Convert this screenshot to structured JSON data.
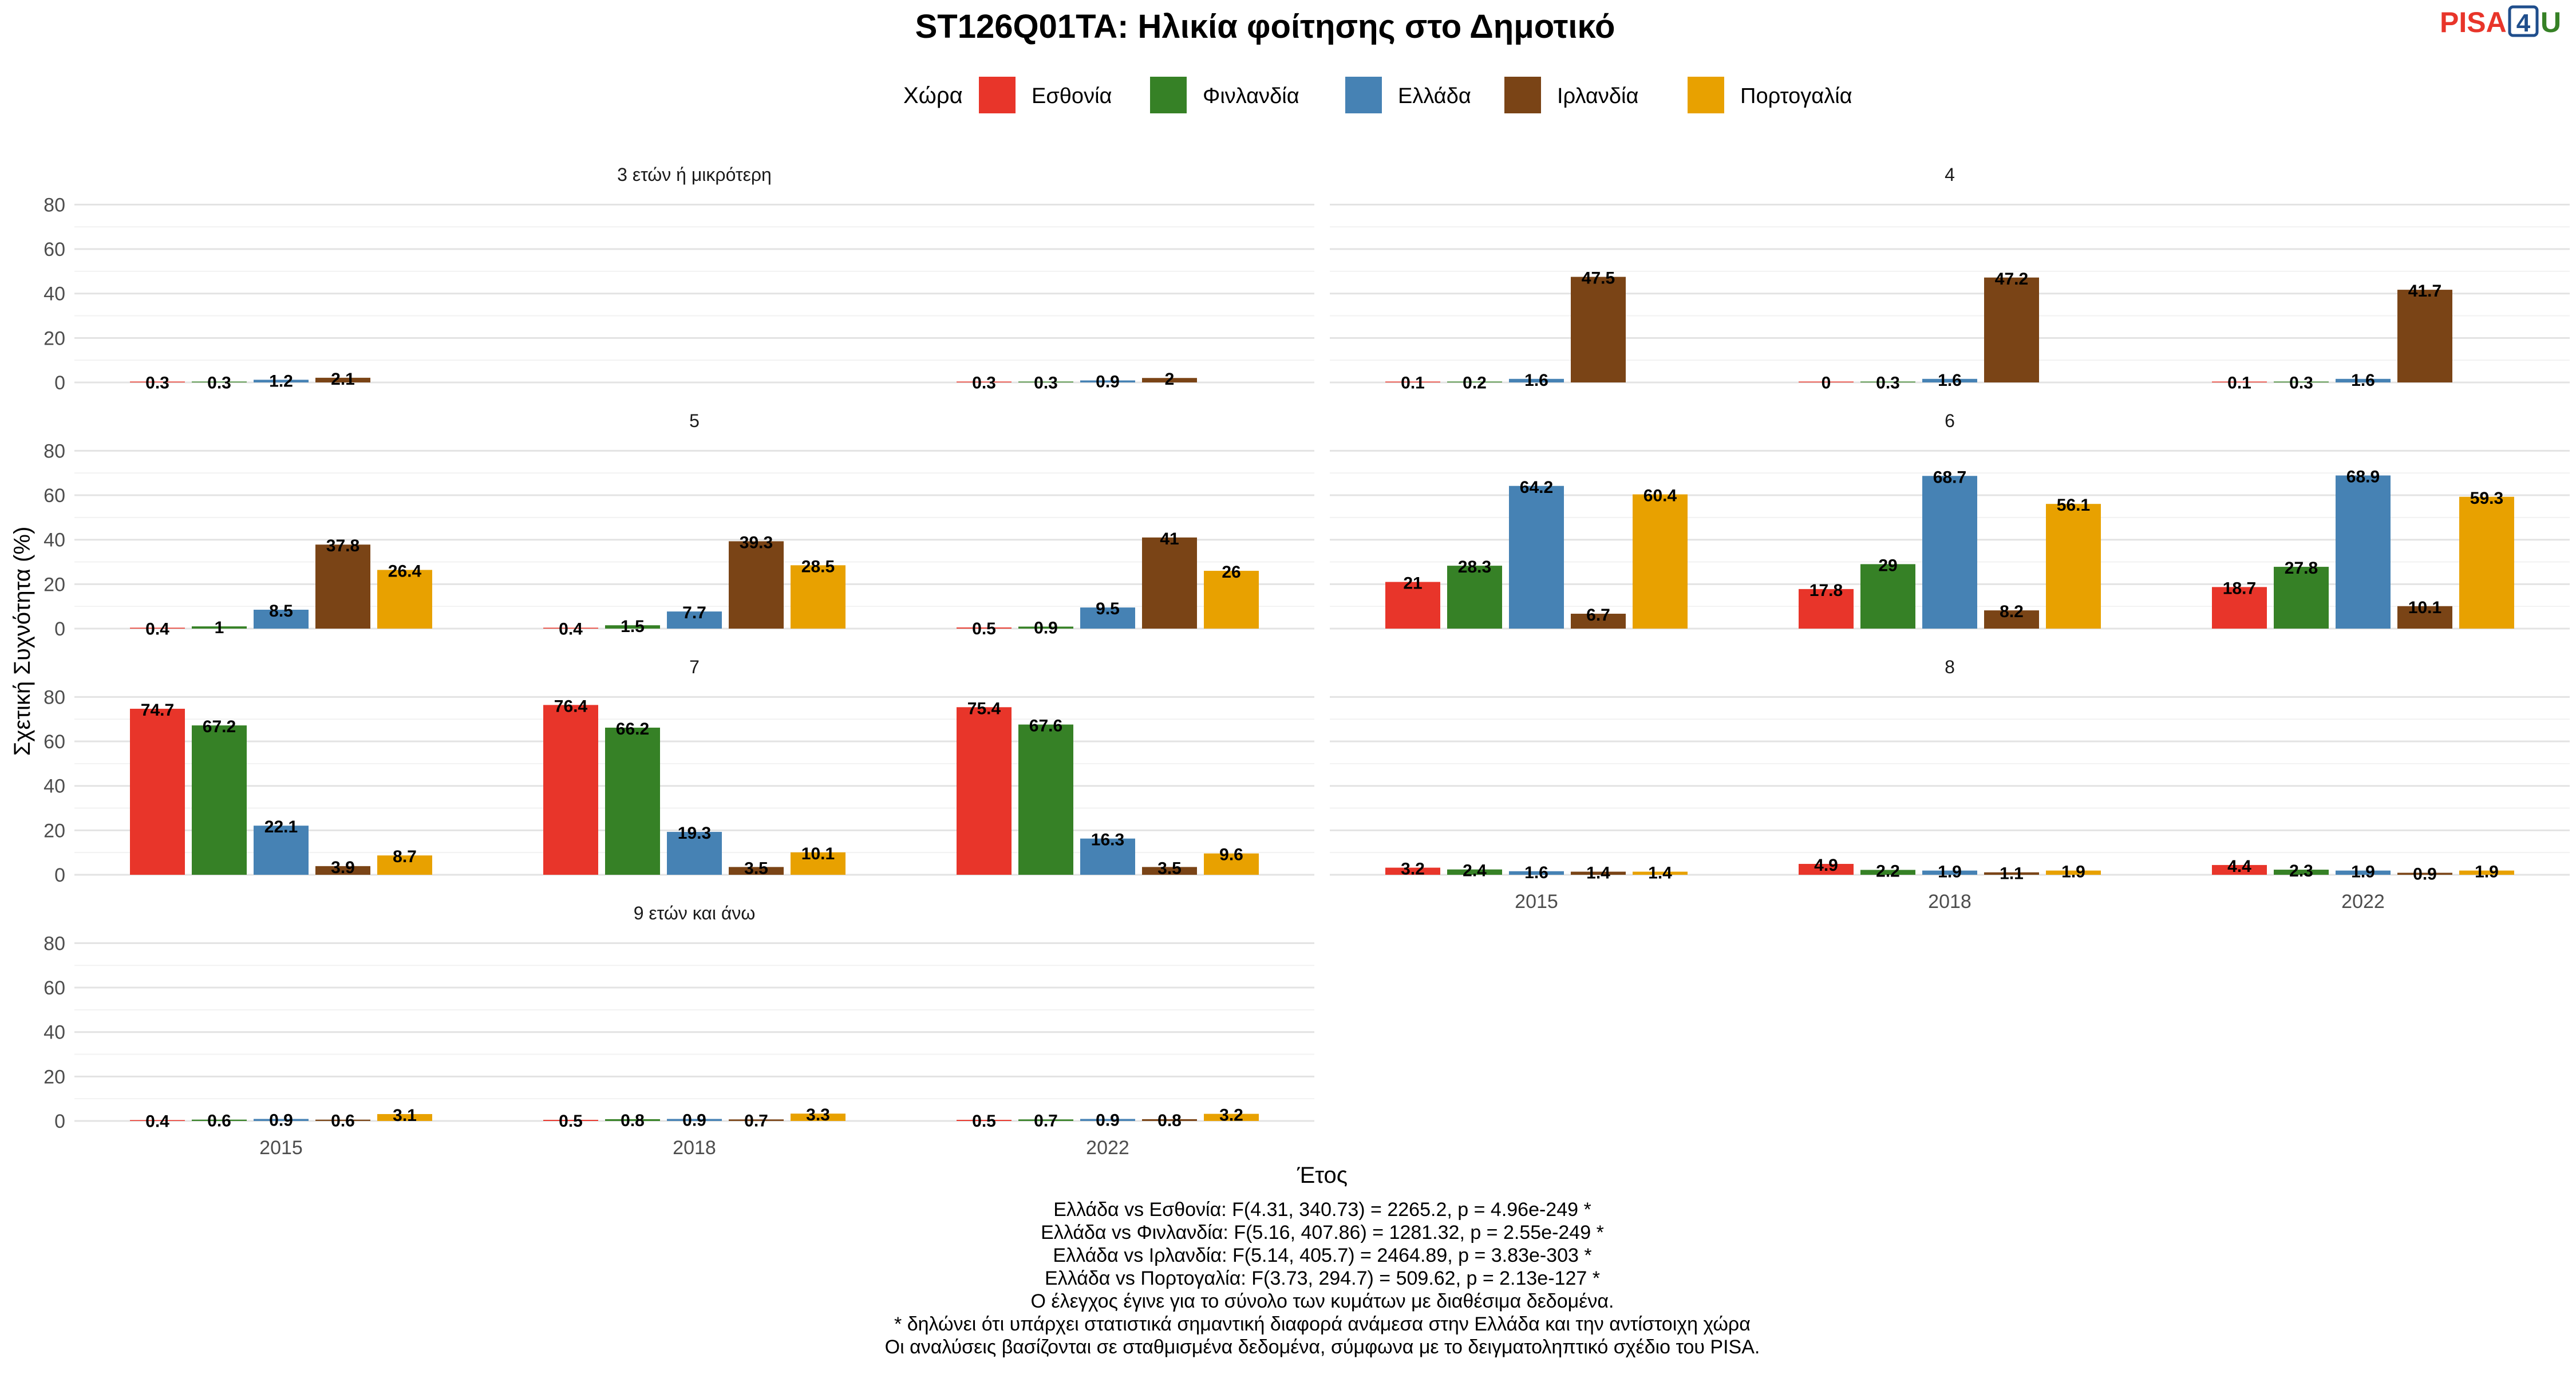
{
  "title": "ST126Q01TA: Ηλικία φοίτησης στο Δημοτικό",
  "logo": {
    "text_pisa": "PISA",
    "text_4": "4",
    "text_u": "U"
  },
  "legend": {
    "title": "Χώρα",
    "items": [
      {
        "label": "Εσθονία",
        "color": "#e8352a"
      },
      {
        "label": "Φινλανδία",
        "color": "#368126"
      },
      {
        "label": "Ελλάδα",
        "color": "#4682b4"
      },
      {
        "label": "Ιρλανδία",
        "color": "#7a4416"
      },
      {
        "label": "Πορτογαλία",
        "color": "#e8a100"
      }
    ]
  },
  "chart_data": {
    "type": "bar",
    "xlabel": "Έτος",
    "ylabel": "Σχετική Συχνότητα (%)",
    "ylim": [
      0,
      85
    ],
    "yticks": [
      0,
      20,
      40,
      60,
      80
    ],
    "categories": [
      "2015",
      "2018",
      "2022"
    ],
    "series_names": [
      "Εσθονία",
      "Φινλανδία",
      "Ελλάδα",
      "Ιρλανδία",
      "Πορτογαλία"
    ],
    "facets": [
      {
        "label": "3 ετών ή μικρότερη",
        "values": [
          [
            0.3,
            0.3,
            1.2,
            2.1,
            null
          ],
          [
            null,
            null,
            null,
            null,
            null
          ],
          [
            0.3,
            0.3,
            0.9,
            2,
            null
          ]
        ]
      },
      {
        "label": "4",
        "values": [
          [
            0.1,
            0.2,
            1.6,
            47.5,
            null
          ],
          [
            0,
            0.3,
            1.6,
            47.2,
            null
          ],
          [
            0.1,
            0.3,
            1.6,
            41.7,
            null
          ]
        ]
      },
      {
        "label": "5",
        "values": [
          [
            0.4,
            1,
            8.5,
            37.8,
            26.4
          ],
          [
            0.4,
            1.5,
            7.7,
            39.3,
            28.5
          ],
          [
            0.5,
            0.9,
            9.5,
            41,
            26
          ]
        ]
      },
      {
        "label": "6",
        "values": [
          [
            21,
            28.3,
            64.2,
            6.7,
            60.4
          ],
          [
            17.8,
            29,
            68.7,
            8.2,
            56.1
          ],
          [
            18.7,
            27.8,
            68.9,
            10.1,
            59.3
          ]
        ]
      },
      {
        "label": "7",
        "values": [
          [
            74.7,
            67.2,
            22.1,
            3.9,
            8.7
          ],
          [
            76.4,
            66.2,
            19.3,
            3.5,
            10.1
          ],
          [
            75.4,
            67.6,
            16.3,
            3.5,
            9.6
          ]
        ]
      },
      {
        "label": "8",
        "values": [
          [
            3.2,
            2.4,
            1.6,
            1.4,
            1.4
          ],
          [
            4.9,
            2.2,
            1.9,
            1.1,
            1.9
          ],
          [
            4.4,
            2.3,
            1.9,
            0.9,
            1.9
          ]
        ]
      },
      {
        "label": "9 ετών και άνω",
        "values": [
          [
            0.4,
            0.6,
            0.9,
            0.6,
            3.1
          ],
          [
            0.5,
            0.8,
            0.9,
            0.7,
            3.3
          ],
          [
            0.5,
            0.7,
            0.9,
            0.8,
            3.2
          ]
        ]
      }
    ]
  },
  "notes": [
    "Ελλάδα vs Εσθονία: F(4.31, 340.73) = 2265.2, p = 4.96e-249 *",
    "Ελλάδα vs Φινλανδία: F(5.16, 407.86) = 1281.32, p = 2.55e-249 *",
    "Ελλάδα vs Ιρλανδία: F(5.14, 405.7) = 2464.89, p = 3.83e-303 *",
    "Ελλάδα vs Πορτογαλία: F(3.73, 294.7) = 509.62, p = 2.13e-127 *",
    "Ο έλεγχος έγινε για το σύνολο των κυμάτων με διαθέσιμα δεδομένα.",
    "* δηλώνει ότι υπάρχει στατιστικά σημαντική διαφορά ανάμεσα στην Ελλάδα και την αντίστοιχη χώρα",
    "Οι αναλύσεις βασίζονται σε σταθμισμένα δεδομένα, σύμφωνα με το δειγματοληπτικό σχέδιο του PISA."
  ]
}
